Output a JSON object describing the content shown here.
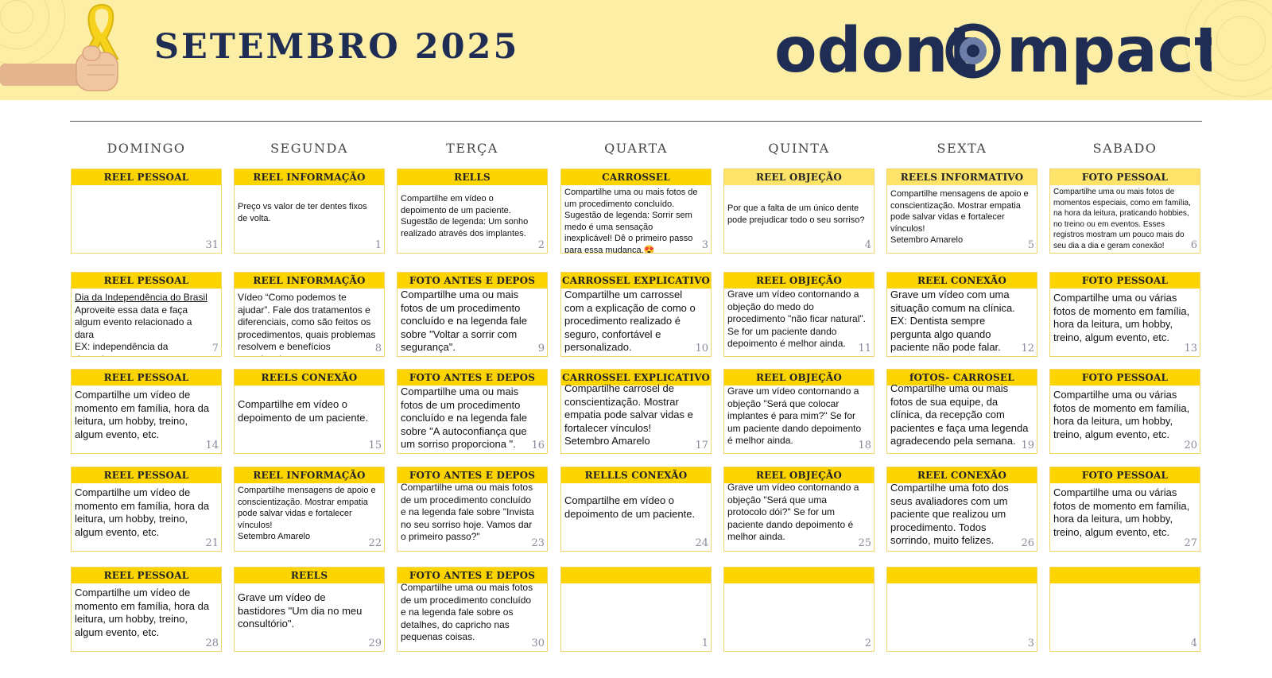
{
  "header": {
    "title": "SETEMBRO 2025",
    "brand": "odontOimpact",
    "brand_left": "odont",
    "brand_right": "mpact"
  },
  "days": [
    "DOMINGO",
    "SEGUNDA",
    "TERÇA",
    "QUARTA",
    "QUINTA",
    "SEXTA",
    "SABADO"
  ],
  "colors": {
    "band": "#fdeea5",
    "bar": "#fcd400",
    "navy": "#1f2d55",
    "ribbon": "#f6d21c",
    "logo_ring": "#6c7ea8"
  },
  "weeks": [
    [
      {
        "label": "REEL PESSOAL",
        "text": "",
        "num": "31"
      },
      {
        "label": "REEL INFORMAÇÃO",
        "text": "Preço vs valor de ter dentes fixos de volta.",
        "num": "1"
      },
      {
        "label": "RELLS",
        "text": "Compartilhe em vídeo o depoimento de um paciente.\nSugestão de legenda: Um sonho realizado através dos implantes.",
        "num": "2"
      },
      {
        "label": "CARROSSEL",
        "text": "Compartilhe uma ou mais fotos de um procedimento concluído.\nSugestão de legenda: Sorrir sem medo é uma sensação inexplicável! Dê o primeiro passo para essa mudança.😍",
        "num": "3"
      },
      {
        "label": "REEL OBJEÇÃO",
        "text": "Por que a falta de um único dente pode prejudicar todo o seu sorriso?",
        "num": "4"
      },
      {
        "label": "REELS INFORMATIVO",
        "text": "Compartilhe mensagens de apoio e conscientização. Mostrar empatia pode salvar vidas e fortalecer vínculos!\nSetembro Amarelo",
        "num": "5"
      },
      {
        "label": "FOTO PESSOAL",
        "text": "Compartilhe uma ou mais fotos de momentos especiais, como em família, na hora da leitura, praticando hobbies, no treino ou em eventos. Esses registros mostram um pouco mais do seu dia a dia e geram conexão!",
        "num": "6"
      }
    ],
    [
      {
        "label": "REEL PESSOAL",
        "text_ul": "Dia da Independência do Brasil",
        "text": "Aproveite essa data e faça algum evento relacionado a dara\nEX: independência da dentadura",
        "num": "7"
      },
      {
        "label": "REEL INFORMAÇÃO",
        "text": "Vídeo “Como podemos te ajudar”. Fale dos tratamentos e diferenciais, como são feitos os procedimentos, quais problemas resolvem e benefícios emocionais.",
        "num": "8"
      },
      {
        "label": "FOTO ANTES E DEPOS",
        "text": "Compartilhe uma ou mais fotos de um procedimento concluído e na legenda fale sobre \"Voltar a sorrir com segurança\".",
        "num": "9"
      },
      {
        "label": "CARROSSEL EXPLICATIVO",
        "text": "Compartilhe um carrossel com a explicação de como o procedimento realizado é seguro, confortável e personalizado.",
        "num": "10"
      },
      {
        "label": "REEL OBJEÇÃO",
        "text": "Grave um vídeo contornando a objeção do medo do procedimento \"não ficar natural\". Se for um paciente dando depoimento é melhor ainda.",
        "num": "11"
      },
      {
        "label": "REEL CONEXÃO",
        "text": "Grave um vídeo com uma situação comum na clínica. EX: Dentista sempre pergunta algo quando paciente não pode falar.",
        "num": "12"
      },
      {
        "label": "FOTO PESSOAL",
        "text": "Compartilhe uma ou várias fotos de momento em família, hora da leitura, um hobby, treino, algum evento, etc.",
        "num": "13"
      }
    ],
    [
      {
        "label": "REEL PESSOAL",
        "text": "Compartilhe um vídeo de momento em família, hora da leitura, um hobby, treino, algum evento, etc.",
        "num": "14"
      },
      {
        "label": "REELS CONEXÃO",
        "text": "Compartilhe em vídeo o depoimento de um paciente.",
        "num": "15"
      },
      {
        "label": "FOTO ANTES E DEPOS",
        "text": "Compartilhe uma ou mais fotos de um procedimento concluído e na legenda fale sobre \"A autoconfiança que um sorriso proporciona \".",
        "num": "16"
      },
      {
        "label": "CARROSSEL EXPLICATIVO",
        "text": "Compartilhe carrosel de conscientização.  Mostrar empatia pode salvar vidas e fortalecer vínculos!\nSetembro Amarelo",
        "num": "17"
      },
      {
        "label": "REEL OBJEÇÃO",
        "text": "Grave um vídeo contornando a objeção \"Será que colocar implantes é para mim?\" Se for um paciente dando depoimento é melhor ainda.",
        "num": "18"
      },
      {
        "label": "fOTOS- CARROSEL",
        "text": "Compartilhe uma ou mais fotos de sua equipe, da clínica, da recepção com pacientes e faça uma legenda agradecendo pela semana.",
        "num": "19"
      },
      {
        "label": "FOTO PESSOAL",
        "text": "Compartilhe uma ou várias fotos de momento em família, hora da leitura, um hobby, treino, algum evento, etc.",
        "num": "20"
      }
    ],
    [
      {
        "label": "REEL PESSOAL",
        "text": "Compartilhe um vídeo de momento em família, hora da leitura, um hobby, treino, algum evento, etc.",
        "num": "21"
      },
      {
        "label": "REEL INFORMAÇÃO",
        "text": "Compartilhe mensagens de apoio e conscientização. Mostrar empatia pode salvar vidas e fortalecer vínculos!\nSetembro Amarelo",
        "num": "22"
      },
      {
        "label": "FOTO ANTES E DEPOS",
        "text": "Compartilhe uma ou mais fotos de um procedimento concluído e na legenda fale sobre \"Invista no seu sorriso hoje. Vamos dar o primeiro passo?\"",
        "num": "23"
      },
      {
        "label": "RELLLS CONEXÃO",
        "text": "Compartilhe em vídeo o depoimento de um paciente.",
        "num": "24"
      },
      {
        "label": "REEL OBJEÇÃO",
        "text": "Grave um vídeo contornando a objeção \"Será que uma protocolo dói?\" Se for um paciente dando depoimento é melhor ainda.",
        "num": "25"
      },
      {
        "label": "REEL CONEXÃO",
        "text": "Compartilhe uma foto dos seus avaliadores com um paciente que realizou um procedimento. Todos sorrindo, muito felizes.",
        "num": "26"
      },
      {
        "label": "FOTO PESSOAL",
        "text": "Compartilhe uma ou várias fotos de momento em família, hora da leitura, um hobby, treino, algum evento, etc.",
        "num": "27"
      }
    ],
    [
      {
        "label": "REEL PESSOAL",
        "text": "Compartilhe um vídeo de momento em família, hora da leitura, um hobby, treino, algum evento, etc.",
        "num": "28"
      },
      {
        "label": "REELS",
        "text": "Grave um vídeo de bastidores \"Um dia no meu consultório\".",
        "num": "29"
      },
      {
        "label": "FOTO ANTES E DEPOS",
        "text": "Compartilhe uma ou mais fotos de um procedimento concluído e na legenda fale sobre os detalhes, do capricho nas pequenas coisas.",
        "num": "30"
      },
      {
        "label": "",
        "text": "",
        "num": "1"
      },
      {
        "label": "",
        "text": "",
        "num": "2"
      },
      {
        "label": "",
        "text": "",
        "num": "3"
      },
      {
        "label": "",
        "text": "",
        "num": "4"
      }
    ]
  ]
}
